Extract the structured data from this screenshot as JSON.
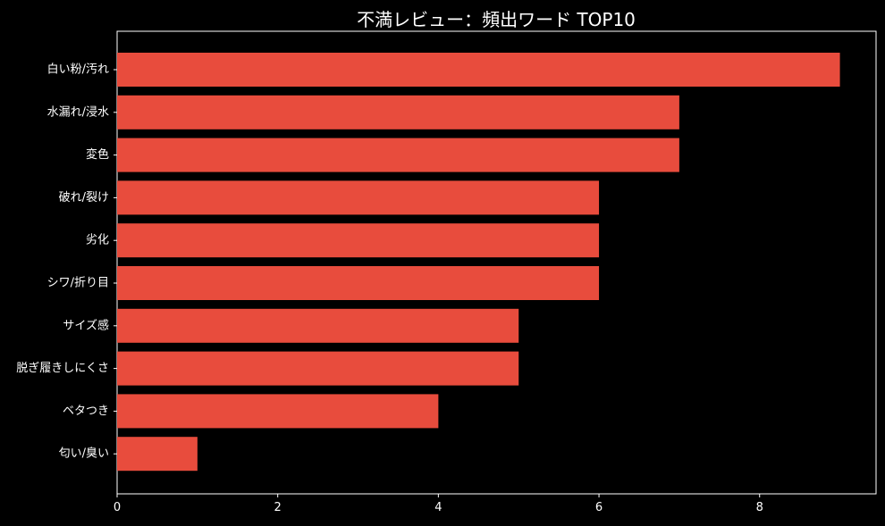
{
  "chart_data": {
    "type": "bar",
    "orientation": "horizontal",
    "title": "不満レビュー：頻出ワード TOP10",
    "xlabel": "",
    "ylabel": "",
    "categories": [
      "白い粉/汚れ",
      "水漏れ/浸水",
      "変色",
      "破れ/裂け",
      "劣化",
      "シワ/折り目",
      "サイズ感",
      "脱ぎ履きしにくさ",
      "ベタつき",
      "匂い/臭い"
    ],
    "values": [
      9,
      7,
      7,
      6,
      6,
      6,
      5,
      5,
      4,
      1
    ],
    "xlim": [
      0,
      9.45
    ],
    "xticks": [
      0,
      2,
      4,
      6,
      8
    ],
    "grid": false,
    "legend": "none",
    "bar_color": "#e84c3d",
    "background": "#000000",
    "axis_color": "#ffffff",
    "text_color": "#ffffff"
  }
}
